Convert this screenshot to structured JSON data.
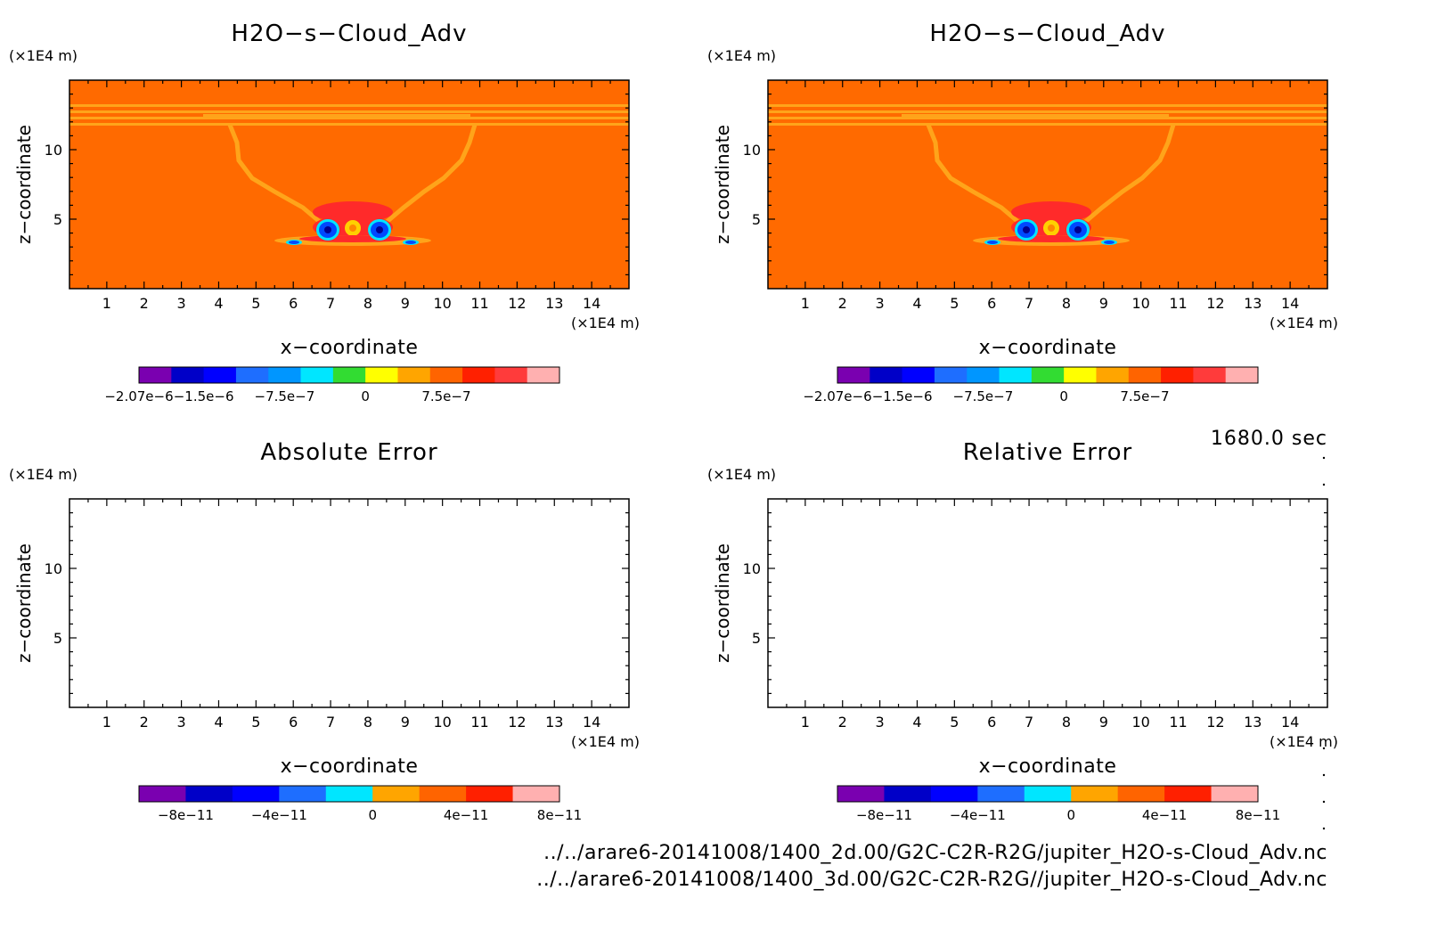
{
  "panel_xlabel": "x−coordinate",
  "panel_ylabel": "z−coordinate",
  "unit_label": "(×1E4 m)",
  "time_label": "1680.0 sec",
  "footer": {
    "line1": "../../arare6-20141008/1400_2d.00/G2C-C2R-R2G/jupiter_H2O-s-Cloud_Adv.nc",
    "line2": "../../arare6-20141008/1400_3d.00/G2C-C2R-R2G//jupiter_H2O-s-Cloud_Adv.nc"
  },
  "colors": {
    "background_orange": "#ff6a00",
    "band_light": "#ffa41a",
    "contour_red": "#ff2a2a",
    "contour_blue": "#0048ff",
    "contour_cyan": "#00e5ff"
  },
  "chart_data": [
    {
      "type": "heatmap",
      "title": "H2O−s−Cloud_Adv",
      "xlabel": "x−coordinate",
      "ylabel": "z−coordinate",
      "xunit": "(×1E4 m)",
      "yunit": "(×1E4 m)",
      "xlim": [
        0,
        15
      ],
      "ylim": [
        0,
        15
      ],
      "xticks": [
        1,
        2,
        3,
        4,
        5,
        6,
        7,
        8,
        9,
        10,
        11,
        12,
        13,
        14
      ],
      "yticks": [
        5,
        10
      ],
      "colorbar": {
        "colors": [
          "#7a00b0",
          "#0000c8",
          "#0000ff",
          "#1e6eff",
          "#0096ff",
          "#00e6ff",
          "#32dc32",
          "#ffff00",
          "#ffa500",
          "#ff6400",
          "#ff2000",
          "#ff3b3b",
          "#ffb0b0"
        ],
        "labels": [
          "−2.07e−6",
          "−1.5e−6",
          "−7.5e−7",
          "0",
          "7.5e−7"
        ],
        "label_positions": [
          0,
          2,
          4.5,
          7,
          9.5
        ]
      },
      "filled": true
    },
    {
      "type": "heatmap",
      "title": "H2O−s−Cloud_Adv",
      "xlabel": "x−coordinate",
      "ylabel": "z−coordinate",
      "xunit": "(×1E4 m)",
      "yunit": "(×1E4 m)",
      "xlim": [
        0,
        15
      ],
      "ylim": [
        0,
        15
      ],
      "xticks": [
        1,
        2,
        3,
        4,
        5,
        6,
        7,
        8,
        9,
        10,
        11,
        12,
        13,
        14
      ],
      "yticks": [
        5,
        10
      ],
      "colorbar": {
        "colors": [
          "#7a00b0",
          "#0000c8",
          "#0000ff",
          "#1e6eff",
          "#0096ff",
          "#00e6ff",
          "#32dc32",
          "#ffff00",
          "#ffa500",
          "#ff6400",
          "#ff2000",
          "#ff3b3b",
          "#ffb0b0"
        ],
        "labels": [
          "−2.07e−6",
          "−1.5e−6",
          "−7.5e−7",
          "0",
          "7.5e−7"
        ],
        "label_positions": [
          0,
          2,
          4.5,
          7,
          9.5
        ]
      },
      "filled": true
    },
    {
      "type": "heatmap",
      "title": "Absolute Error",
      "xlabel": "x−coordinate",
      "ylabel": "z−coordinate",
      "xunit": "(×1E4 m)",
      "yunit": "(×1E4 m)",
      "xlim": [
        0,
        15
      ],
      "ylim": [
        0,
        15
      ],
      "xticks": [
        1,
        2,
        3,
        4,
        5,
        6,
        7,
        8,
        9,
        10,
        11,
        12,
        13,
        14
      ],
      "yticks": [
        5,
        10
      ],
      "colorbar": {
        "colors": [
          "#7a00b0",
          "#0000c8",
          "#0000ff",
          "#1e6eff",
          "#00e6ff",
          "#ffa500",
          "#ff6400",
          "#ff2000",
          "#ffb0b0"
        ],
        "labels": [
          "−8e−11",
          "−4e−11",
          "0",
          "4e−11",
          "8e−11"
        ],
        "label_positions": [
          1,
          3,
          5,
          7,
          9
        ]
      },
      "filled": false
    },
    {
      "type": "heatmap",
      "title": "Relative Error",
      "xlabel": "x−coordinate",
      "ylabel": "z−coordinate",
      "xunit": "(×1E4 m)",
      "yunit": "(×1E4 m)",
      "xlim": [
        0,
        15
      ],
      "ylim": [
        0,
        15
      ],
      "xticks": [
        1,
        2,
        3,
        4,
        5,
        6,
        7,
        8,
        9,
        10,
        11,
        12,
        13,
        14
      ],
      "yticks": [
        5,
        10
      ],
      "colorbar": {
        "colors": [
          "#7a00b0",
          "#0000c8",
          "#0000ff",
          "#1e6eff",
          "#00e6ff",
          "#ffa500",
          "#ff6400",
          "#ff2000",
          "#ffb0b0"
        ],
        "labels": [
          "−8e−11",
          "−4e−11",
          "0",
          "4e−11",
          "8e−11"
        ],
        "label_positions": [
          1,
          3,
          5,
          7,
          9
        ]
      },
      "filled": false
    }
  ]
}
